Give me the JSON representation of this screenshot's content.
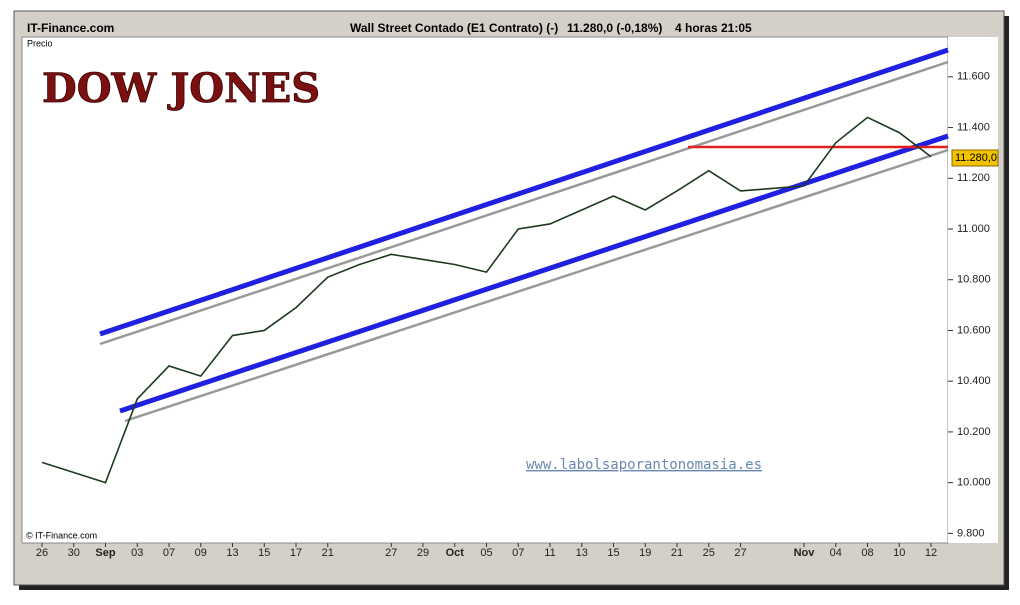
{
  "chart_data": {
    "type": "line",
    "title": "DOW JONES",
    "header": {
      "source": "IT-Finance.com",
      "instrument": "Wall Street Contado (E1 Contrato) (-)",
      "quote": "11.280,0 (-0,18%)",
      "period": "4 horas",
      "time": "21:05"
    },
    "y_axis_label": "Precio",
    "watermark": "www.labolsaporantonomasia.es",
    "copyright": "© IT-Finance.com",
    "categories": [
      "26",
      "30",
      "Sep",
      "03",
      "07",
      "09",
      "13",
      "15",
      "17",
      "21",
      null,
      "27",
      "29",
      "Oct",
      "05",
      "07",
      "11",
      "13",
      "15",
      "19",
      "21",
      "25",
      "27",
      null,
      "Nov",
      "04",
      "08",
      "10",
      "12"
    ],
    "series": [
      {
        "color": "#1e3a1e",
        "values": [
          10080,
          10040,
          10000,
          10330,
          10460,
          10420,
          10580,
          10600,
          10690,
          10810,
          10860,
          10900,
          10880,
          10860,
          10830,
          11000,
          11020,
          11075,
          11130,
          11075,
          11150,
          11230,
          11150,
          11160,
          11170,
          11340,
          11440,
          11380,
          11285
        ]
      }
    ],
    "last_price": {
      "value": 11280,
      "label": "11.280,0"
    },
    "ylim": [
      9762,
      11757
    ],
    "yticks": [
      {
        "value": 9800,
        "label": "9.800"
      },
      {
        "value": 10000,
        "label": "10.000"
      },
      {
        "value": 10200,
        "label": "10.200"
      },
      {
        "value": 10400,
        "label": "10.400"
      },
      {
        "value": 10600,
        "label": "10.600"
      },
      {
        "value": 10800,
        "label": "10.800"
      },
      {
        "value": 11000,
        "label": "11.000"
      },
      {
        "value": 11200,
        "label": "11.200"
      },
      {
        "value": 11400,
        "label": "11.400"
      },
      {
        "value": 11600,
        "label": "11.600"
      }
    ],
    "grid": false
  }
}
